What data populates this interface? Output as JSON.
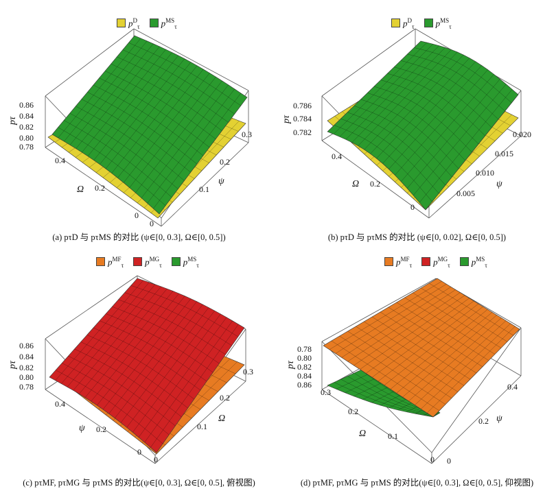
{
  "colors": {
    "D": "#e3d133",
    "MS": "#2a9a2e",
    "MF": "#e77b22",
    "MG": "#cf2223"
  },
  "chart_data": [
    {
      "type": "3d-surface",
      "id": "a",
      "legend": [
        {
          "key": "D",
          "sup": "D"
        },
        {
          "key": "MS",
          "sup": "MS"
        }
      ],
      "z_label": "pτ",
      "z_ticks": [
        "0.86",
        "0.84",
        "0.82",
        "0.80",
        "0.78"
      ],
      "x_label": "ψ",
      "x_ticks": [
        "0",
        "0.1",
        "0.2",
        "0.3"
      ],
      "y_label": "Ω",
      "y_ticks": [
        "0",
        "0.2",
        "0.4"
      ],
      "psi_range": [
        0,
        0.3
      ],
      "omega_range": [
        0,
        0.5
      ],
      "caption": "(a) pτD 与 pτMS 的对比 (ψ∈[0, 0.3], Ω∈[0, 0.5])"
    },
    {
      "type": "3d-surface",
      "id": "b",
      "legend": [
        {
          "key": "D",
          "sup": "D"
        },
        {
          "key": "MS",
          "sup": "MS"
        }
      ],
      "z_label": "pτ",
      "z_ticks": [
        "0.786",
        "0.784",
        "0.782"
      ],
      "x_label": "ψ",
      "x_ticks": [
        "0.005",
        "0.010",
        "0.015",
        "0.020"
      ],
      "y_label": "Ω",
      "y_ticks": [
        "0",
        "0.2",
        "0.4"
      ],
      "psi_range": [
        0,
        0.02
      ],
      "omega_range": [
        0,
        0.5
      ],
      "caption": "(b) pτD 与 pτMS 的对比 (ψ∈[0, 0.02], Ω∈[0, 0.5])"
    },
    {
      "type": "3d-surface",
      "id": "c",
      "legend": [
        {
          "key": "MF",
          "sup": "MF"
        },
        {
          "key": "MG",
          "sup": "MG"
        },
        {
          "key": "MS",
          "sup": "MS"
        }
      ],
      "z_label": "pτ",
      "z_ticks": [
        "0.86",
        "0.84",
        "0.82",
        "0.80",
        "0.78"
      ],
      "x_label": "Ω",
      "x_ticks": [
        "0",
        "0.1",
        "0.2",
        "0.3"
      ],
      "y_label": "ψ",
      "y_ticks": [
        "0",
        "0.2",
        "0.4"
      ],
      "psi_range": [
        0,
        0.3
      ],
      "omega_range": [
        0,
        0.5
      ],
      "caption": "(c) pτMF, pτMG 与 pτMS 的对比(ψ∈[0, 0.3], Ω∈[0, 0.5], 俯视图)"
    },
    {
      "type": "3d-surface",
      "id": "d",
      "legend": [
        {
          "key": "MF",
          "sup": "MF"
        },
        {
          "key": "MG",
          "sup": "MG"
        },
        {
          "key": "MS",
          "sup": "MS"
        }
      ],
      "z_label": "pτ",
      "z_ticks": [
        "0.78",
        "0.80",
        "0.82",
        "0.84",
        "0.86"
      ],
      "x_label": "ψ",
      "x_ticks": [
        "0",
        "0.2",
        "0.4"
      ],
      "y_label": "Ω",
      "y_ticks": [
        "0.3",
        "0.2",
        "0.1",
        "0"
      ],
      "psi_range": [
        0,
        0.3
      ],
      "omega_range": [
        0,
        0.5
      ],
      "caption": "(d) pτMF, pτMG 与 pτMS 的对比(ψ∈[0, 0.3], Ω∈[0, 0.5], 仰视图)"
    }
  ]
}
